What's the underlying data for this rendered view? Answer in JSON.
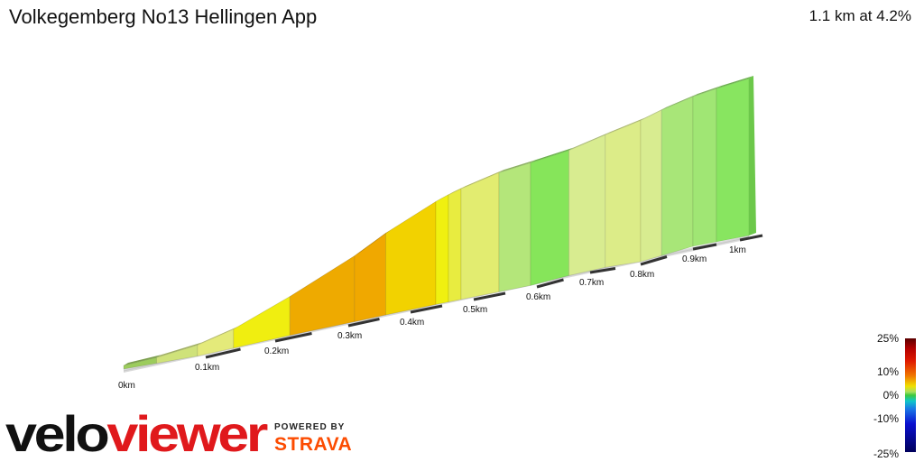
{
  "header": {
    "title": "Volkegemberg No13 Hellingen App",
    "summary": "1.1 km at 4.2%"
  },
  "chart_data": {
    "type": "area",
    "title": "Volkegemberg No13 Hellingen App",
    "x_unit": "km",
    "x_ticks": [
      "0km",
      "0.1km",
      "0.2km",
      "0.3km",
      "0.4km",
      "0.5km",
      "0.6km",
      "0.7km",
      "0.8km",
      "0.9km",
      "1km"
    ],
    "total_distance_km": 1.1,
    "average_gradient_pct": 4.2,
    "segments": [
      {
        "km_start": 0.0,
        "km_end": 0.04,
        "gradient_pct": 1.5,
        "color": "#9ccc5c"
      },
      {
        "km_start": 0.04,
        "km_end": 0.09,
        "gradient_pct": 3.0,
        "color": "#cfe27a"
      },
      {
        "km_start": 0.09,
        "km_end": 0.14,
        "gradient_pct": 4.5,
        "color": "#e4ea7a"
      },
      {
        "km_start": 0.14,
        "km_end": 0.22,
        "gradient_pct": 7.0,
        "color": "#f0ee10"
      },
      {
        "km_start": 0.22,
        "km_end": 0.31,
        "gradient_pct": 8.5,
        "color": "#eeaa00"
      },
      {
        "km_start": 0.31,
        "km_end": 0.36,
        "gradient_pct": 9.0,
        "color": "#f0a800"
      },
      {
        "km_start": 0.36,
        "km_end": 0.44,
        "gradient_pct": 7.5,
        "color": "#f2d200"
      },
      {
        "km_start": 0.44,
        "km_end": 0.46,
        "gradient_pct": 6.0,
        "color": "#f0f010"
      },
      {
        "km_start": 0.46,
        "km_end": 0.48,
        "gradient_pct": 5.0,
        "color": "#e8ec40"
      },
      {
        "km_start": 0.48,
        "km_end": 0.54,
        "gradient_pct": 4.0,
        "color": "#e2ec70"
      },
      {
        "km_start": 0.54,
        "km_end": 0.59,
        "gradient_pct": 2.0,
        "color": "#b4e67a"
      },
      {
        "km_start": 0.59,
        "km_end": 0.66,
        "gradient_pct": 1.0,
        "color": "#86e55a"
      },
      {
        "km_start": 0.66,
        "km_end": 0.73,
        "gradient_pct": 3.0,
        "color": "#d8ec90"
      },
      {
        "km_start": 0.73,
        "km_end": 0.8,
        "gradient_pct": 3.5,
        "color": "#dcec88"
      },
      {
        "km_start": 0.8,
        "km_end": 0.84,
        "gradient_pct": 3.0,
        "color": "#d8ec90"
      },
      {
        "km_start": 0.84,
        "km_end": 0.9,
        "gradient_pct": 2.0,
        "color": "#a8e678"
      },
      {
        "km_start": 0.9,
        "km_end": 0.95,
        "gradient_pct": 2.0,
        "color": "#a0e674"
      },
      {
        "km_start": 0.95,
        "km_end": 1.02,
        "gradient_pct": 1.5,
        "color": "#88e560"
      }
    ],
    "legend": {
      "labels": [
        "25%",
        "10%",
        "0%",
        "-10%",
        "-25%"
      ],
      "placement": "bottom-right"
    }
  },
  "branding": {
    "logo_part1": "velo",
    "logo_part2": "viewer",
    "powered_by": "POWERED BY",
    "strava": "STRAVA"
  }
}
